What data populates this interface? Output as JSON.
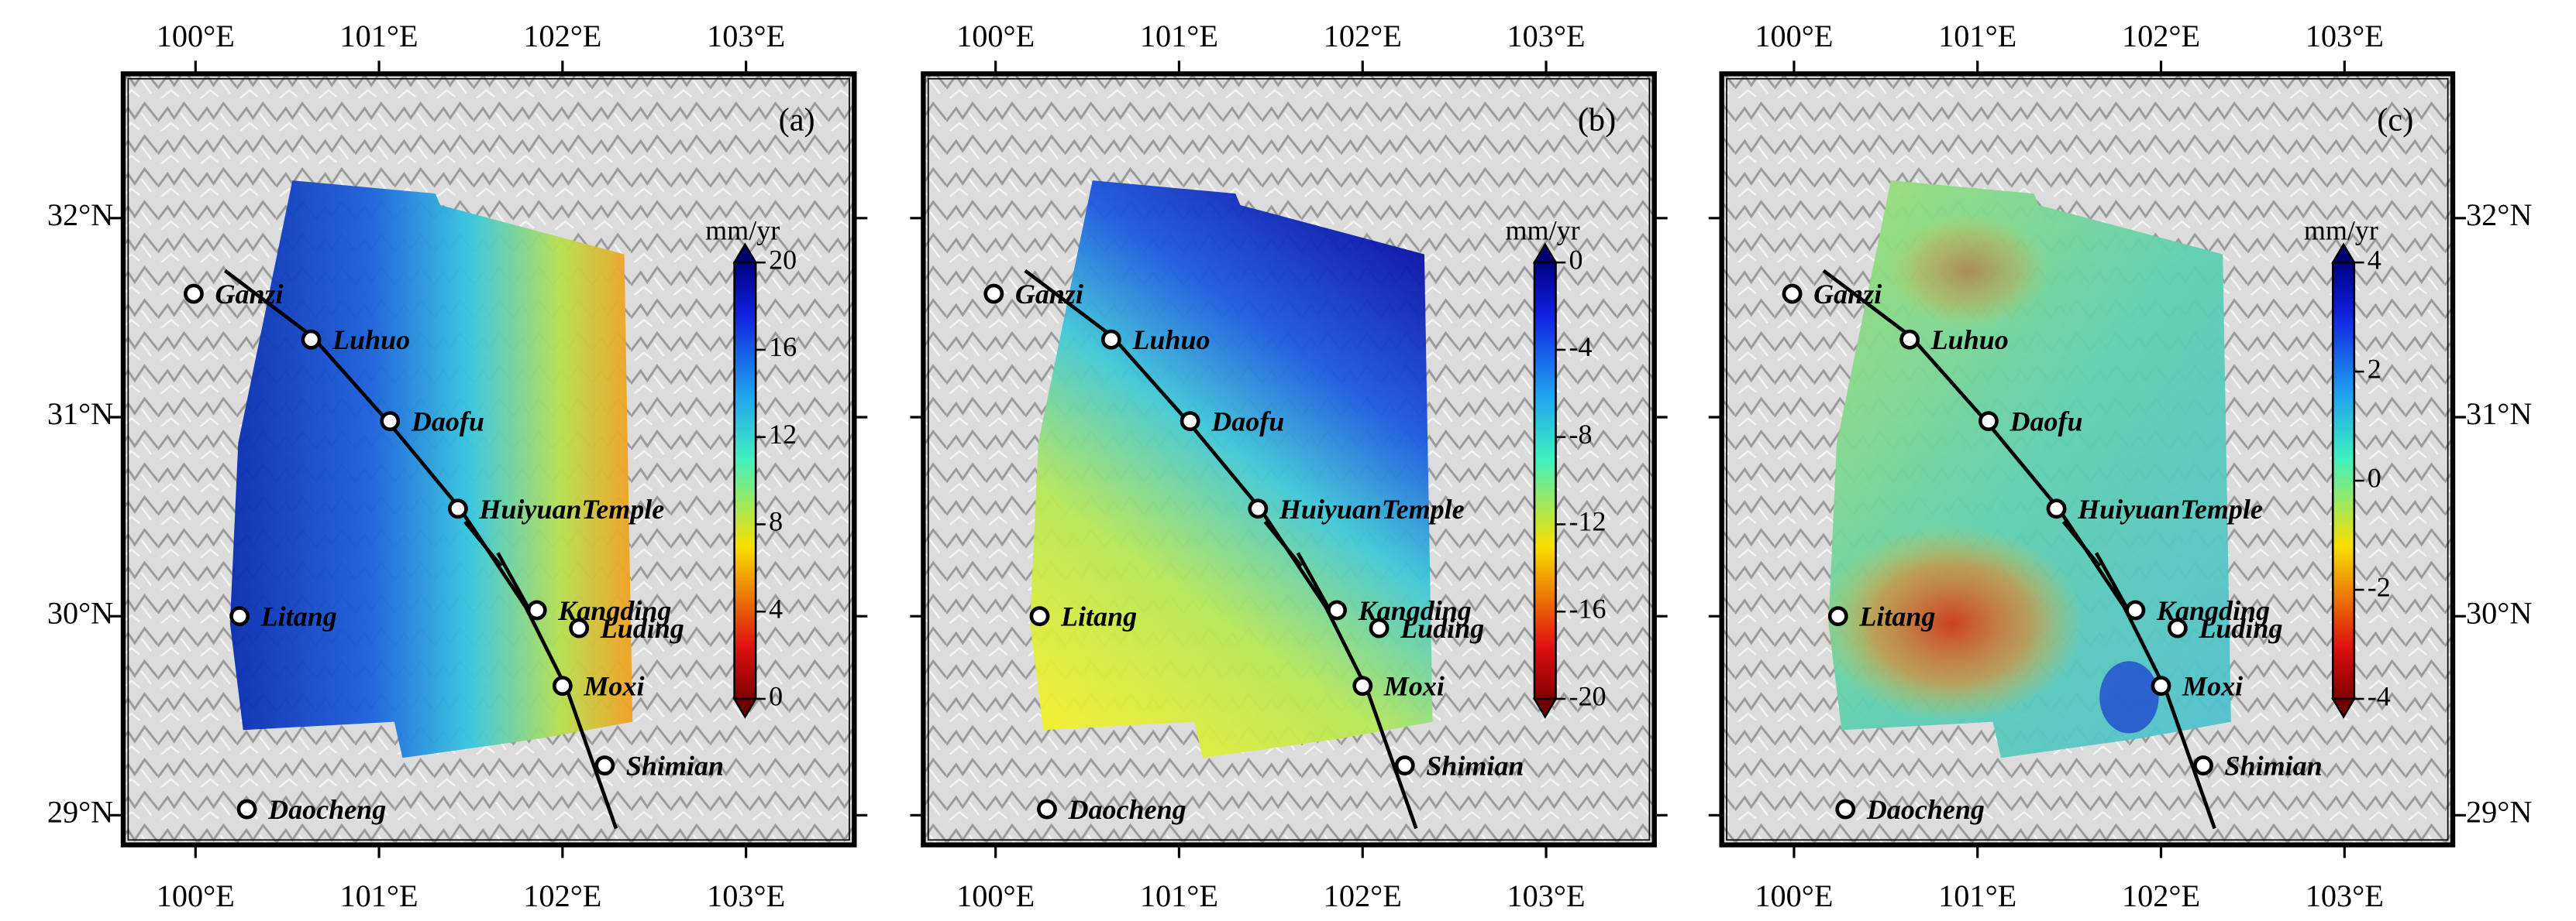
{
  "panels": [
    {
      "label": "(a)",
      "unit": "mm/yr",
      "cbar_lim": [
        0,
        20
      ],
      "cbar_ticks": [
        0,
        4,
        8,
        12,
        16,
        20
      ]
    },
    {
      "label": "(b)",
      "unit": "mm/yr",
      "cbar_lim": [
        -20,
        0
      ],
      "cbar_ticks": [
        -20,
        -16,
        -12,
        -8,
        -4,
        0
      ]
    },
    {
      "label": "(c)",
      "unit": "mm/yr",
      "cbar_lim": [
        -4,
        4
      ],
      "cbar_ticks": [
        -4,
        -2,
        0,
        2,
        4
      ]
    }
  ],
  "lon_lim": [
    99.606,
    103.59
  ],
  "lat_lim": [
    28.851,
    32.725
  ],
  "lon_ticks": [
    {
      "value": 100,
      "label": "100°E"
    },
    {
      "value": 101,
      "label": "101°E"
    },
    {
      "value": 102,
      "label": "102°E"
    },
    {
      "value": 103,
      "label": "103°E"
    }
  ],
  "lat_ticks": [
    {
      "value": 29,
      "label": "29°N"
    },
    {
      "value": 30,
      "label": "30°N"
    },
    {
      "value": 31,
      "label": "31°N"
    },
    {
      "value": 32,
      "label": "32°N"
    }
  ],
  "places": [
    {
      "name": "Ganzi",
      "lon": 99.99,
      "lat": 31.62
    },
    {
      "name": "Luhuo",
      "lon": 100.63,
      "lat": 31.39
    },
    {
      "name": "Daofu",
      "lon": 101.06,
      "lat": 30.98
    },
    {
      "name": "HuiyuanTemple",
      "lon": 101.43,
      "lat": 30.54
    },
    {
      "name": "Kangding",
      "lon": 101.86,
      "lat": 30.03
    },
    {
      "name": "Luding",
      "lon": 102.09,
      "lat": 29.94
    },
    {
      "name": "Moxi",
      "lon": 102.0,
      "lat": 29.65
    },
    {
      "name": "Shimian",
      "lon": 102.23,
      "lat": 29.25
    },
    {
      "name": "Daocheng",
      "lon": 100.28,
      "lat": 29.03
    },
    {
      "name": "Litang",
      "lon": 100.24,
      "lat": 30.0
    }
  ]
}
